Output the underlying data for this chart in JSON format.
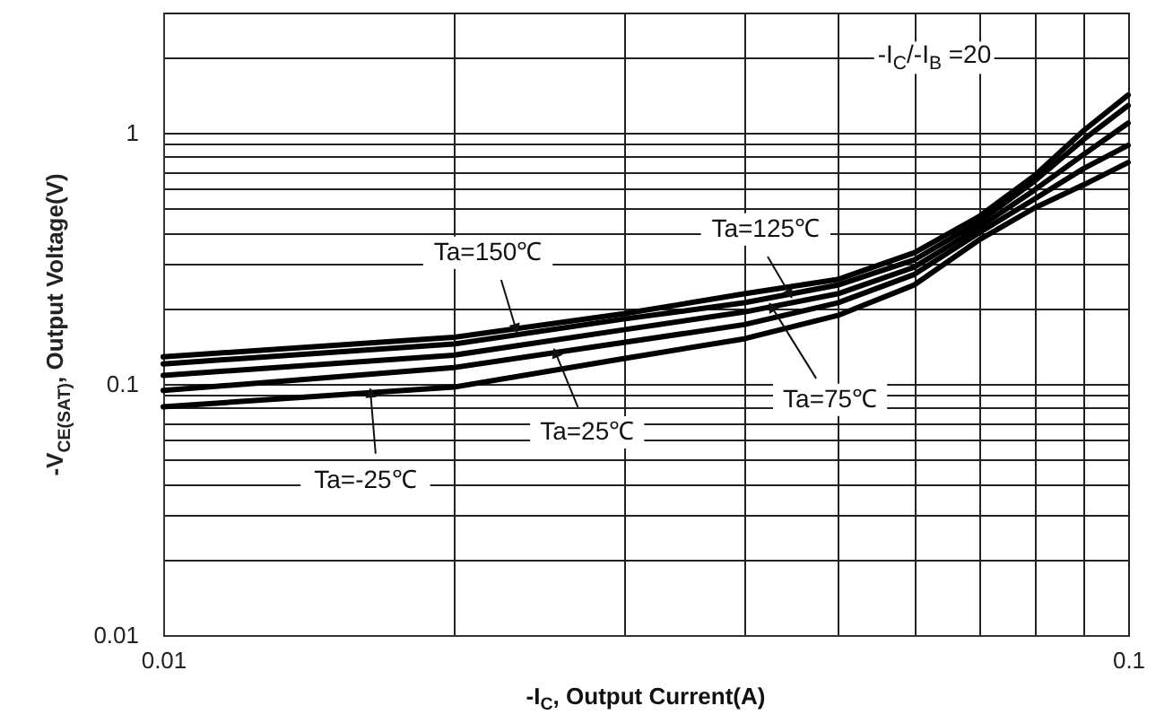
{
  "chart_data": {
    "type": "line",
    "xlabel": "-I$_{C}$, Output Current(A)",
    "ylabel": "-V$_{CE(SAT)}$, Output Voltage(V)",
    "log": "xy",
    "grid": true,
    "marker": "none",
    "line_style": "solid",
    "xlim": [
      0.01,
      0.1
    ],
    "ylim": [
      0.01,
      3
    ],
    "xticks": [
      0.01,
      {
        "value": 0.02,
        "label": null
      },
      {
        "value": 0.03,
        "label": null
      },
      {
        "value": 0.04,
        "label": null
      },
      {
        "value": 0.05,
        "label": null
      },
      {
        "value": 0.06,
        "label": null
      },
      {
        "value": 0.07,
        "label": null
      },
      {
        "value": 0.08,
        "label": null
      },
      {
        "value": 0.09,
        "label": null
      },
      0.1
    ],
    "yticks": [
      0.01,
      {
        "value": 0.02,
        "label": null
      },
      {
        "value": 0.03,
        "label": null
      },
      {
        "value": 0.04,
        "label": null
      },
      {
        "value": 0.05,
        "label": null
      },
      {
        "value": 0.06,
        "label": null
      },
      {
        "value": 0.07,
        "label": null
      },
      {
        "value": 0.08,
        "label": null
      },
      {
        "value": 0.09,
        "label": null
      },
      0.1,
      {
        "value": 0.2,
        "label": null
      },
      {
        "value": 0.3,
        "label": null
      },
      {
        "value": 0.4,
        "label": null
      },
      {
        "value": 0.5,
        "label": null
      },
      {
        "value": 0.6,
        "label": null
      },
      {
        "value": 0.7,
        "label": null
      },
      {
        "value": 0.8,
        "label": null
      },
      {
        "value": 0.9,
        "label": null
      },
      1,
      {
        "value": 2,
        "label": null
      },
      {
        "value": 3,
        "label": null
      }
    ],
    "x": [
      0.01,
      0.02,
      0.03,
      0.04,
      0.05,
      0.06,
      0.07,
      0.08,
      0.09,
      0.1
    ],
    "series": [
      {
        "name": "Ta=150℃",
        "color": "#000000",
        "values": [
          0.128,
          0.153,
          0.19,
          0.228,
          0.26,
          0.332,
          0.462,
          0.674,
          1.02,
          1.41
        ]
      },
      {
        "name": "Ta=125℃",
        "color": "#000000",
        "values": [
          0.12,
          0.144,
          0.181,
          0.21,
          0.247,
          0.311,
          0.44,
          0.641,
          0.94,
          1.28
        ]
      },
      {
        "name": "Ta=75℃",
        "color": "#000000",
        "values": [
          0.108,
          0.13,
          0.164,
          0.193,
          0.228,
          0.291,
          0.418,
          0.591,
          0.82,
          1.09
        ]
      },
      {
        "name": "Ta=25℃",
        "color": "#000000",
        "values": [
          0.094,
          0.116,
          0.146,
          0.172,
          0.21,
          0.272,
          0.398,
          0.544,
          0.72,
          0.89
        ]
      },
      {
        "name": "Ta=-25℃",
        "color": "#000000",
        "values": [
          0.081,
          0.097,
          0.126,
          0.151,
          0.187,
          0.247,
          0.373,
          0.501,
          0.62,
          0.76
        ]
      }
    ],
    "annotations": [
      "-I$_{C}$/-I$_{B}$ =20"
    ]
  }
}
